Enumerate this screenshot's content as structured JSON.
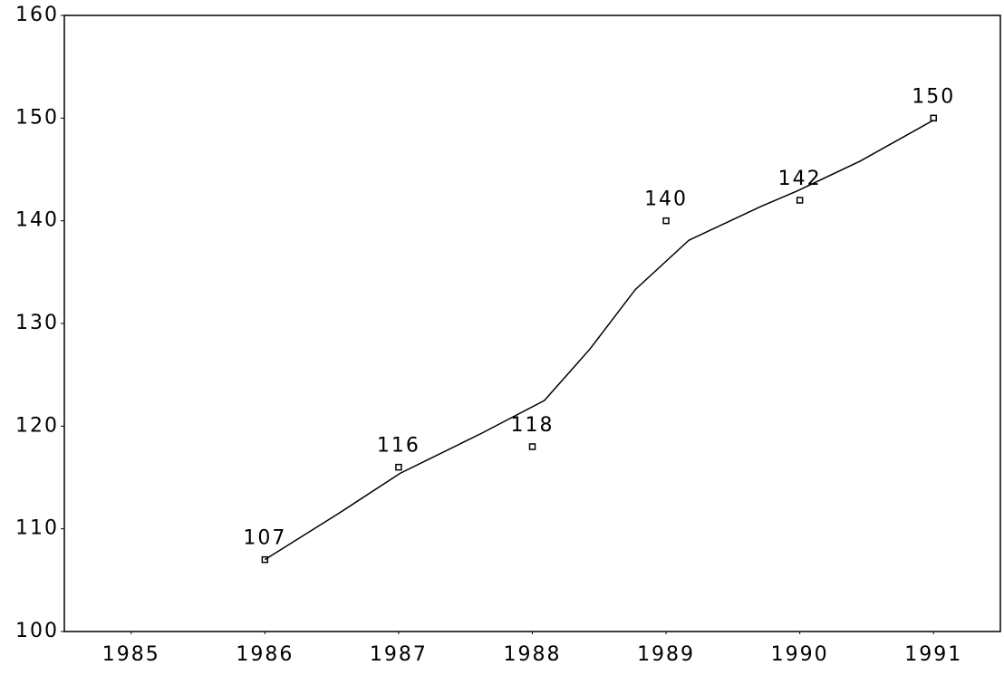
{
  "chart_data": {
    "type": "line",
    "xlim": [
      1984.5,
      1991.5
    ],
    "xticks": [
      1985,
      1986,
      1987,
      1988,
      1989,
      1990,
      1991
    ],
    "ylim": [
      100,
      160
    ],
    "yticks": [
      100,
      110,
      120,
      130,
      140,
      150,
      160
    ],
    "color": "#000000",
    "series": [
      {
        "style": "markers",
        "data_labels": true,
        "x": [
          1986,
          1987,
          1988,
          1989,
          1990,
          1991
        ],
        "values": [
          107,
          116,
          118,
          140,
          142,
          150
        ]
      },
      {
        "style": "line",
        "x": [
          1986,
          1986.54,
          1987.01,
          1987.62,
          1988.09,
          1988.43,
          1988.77,
          1989.17,
          1989.71,
          1989.98,
          1990.45,
          1991
        ],
        "values": [
          107,
          111.4,
          115.4,
          119.3,
          122.5,
          127.5,
          133.3,
          138.1,
          141.4,
          142.9,
          145.8,
          149.8
        ]
      }
    ]
  }
}
